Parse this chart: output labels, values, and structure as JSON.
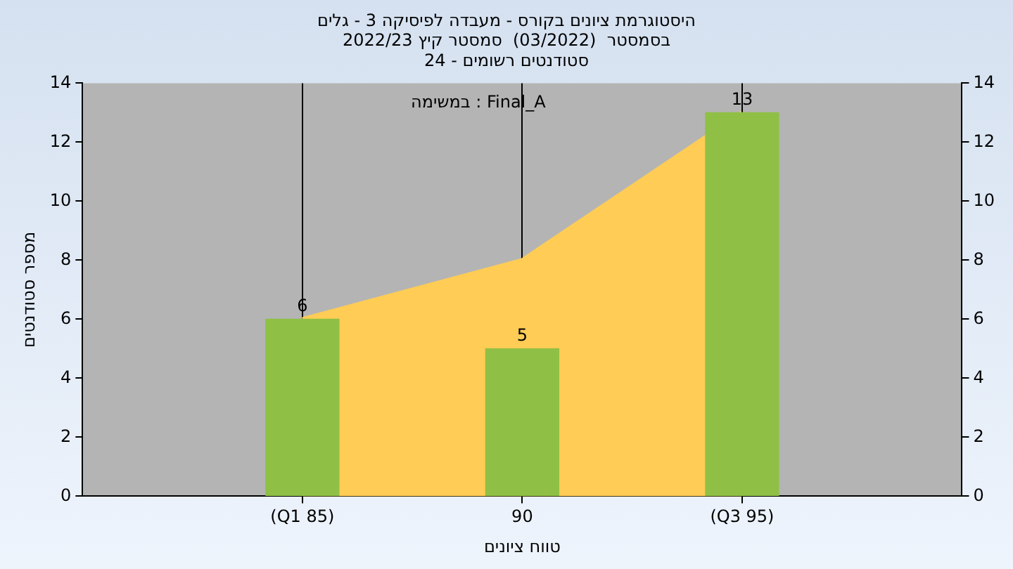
{
  "chart_data": {
    "type": "bar",
    "title": "היסטוגרמת ציונים בקורס - מעבדה לפיסיקה 3 - גלים",
    "subtitle": "בסמסטר  (03/2022)  סמסטר קיץ 2022/23\nסטודנטים רשומים - 24",
    "xlabel": "טווח ציונים",
    "ylabel": "מספר סטודנטים",
    "annotations": [
      "במשימה : Final_A"
    ],
    "categories": [
      "(Q1 85)",
      "90",
      "(Q3 95)"
    ],
    "series": [
      {
        "type": "area",
        "color": "#ffcc55",
        "values": [
          6,
          8,
          13
        ]
      },
      {
        "color": "#8fc045",
        "values": [
          6,
          5,
          13
        ],
        "value_labels": [
          "6",
          "5",
          "13"
        ]
      }
    ],
    "ylim": [
      0,
      14
    ],
    "yticks": [
      0,
      2,
      4,
      6,
      8,
      10,
      12,
      14
    ],
    "y2lim": [
      0,
      14
    ],
    "y2ticks": [
      0,
      2,
      4,
      6,
      8,
      10,
      12,
      14
    ],
    "grid": "x",
    "legend": false
  }
}
